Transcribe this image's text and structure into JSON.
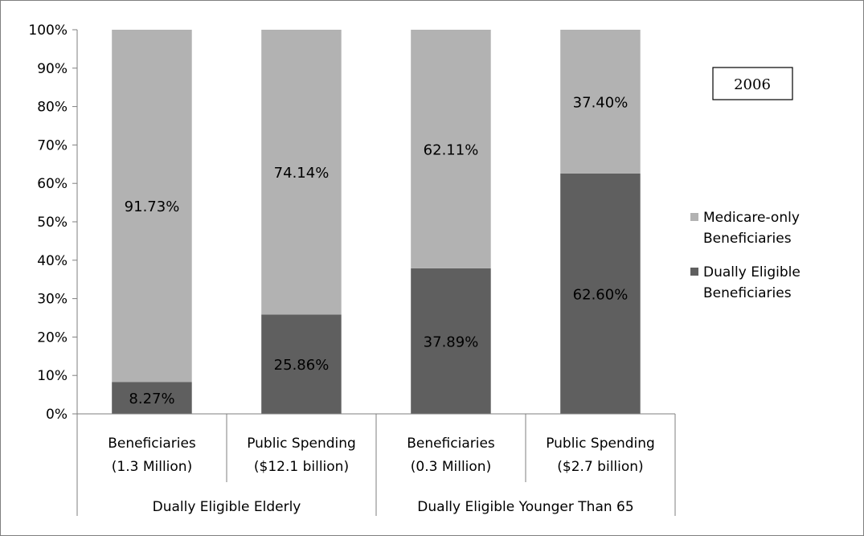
{
  "chart_data": {
    "type": "bar",
    "stacked": true,
    "categories": [
      [
        "Beneficiaries",
        "(1.3 Million)"
      ],
      [
        "Public Spending",
        "($12.1 billion)"
      ],
      [
        "Beneficiaries",
        "(0.3 Million)"
      ],
      [
        "Public Spending",
        "($2.7 billion)"
      ]
    ],
    "groups": [
      "Dually Eligible Elderly",
      "Dually Eligible Younger Than 65"
    ],
    "series": [
      {
        "name": "Dually Eligible Beneficiaries",
        "values": [
          8.27,
          25.86,
          37.89,
          62.6
        ],
        "labels": [
          "8.27%",
          "25.86%",
          "37.89%",
          "62.60%"
        ]
      },
      {
        "name": "Medicare-only Beneficiaries",
        "values": [
          91.73,
          74.14,
          62.11,
          37.4
        ],
        "labels": [
          "91.73%",
          "74.14%",
          "62.11%",
          "37.40%"
        ]
      }
    ],
    "legend": [
      "Medicare-only Beneficiaries",
      "Dually Eligible Beneficiaries"
    ],
    "yticks": [
      "0%",
      "10%",
      "20%",
      "30%",
      "40%",
      "50%",
      "60%",
      "70%",
      "80%",
      "90%",
      "100%"
    ],
    "ylim": [
      0,
      100
    ],
    "annotation": "2006",
    "legend_position": "right",
    "grid": false
  },
  "colors": {
    "dually": "#5f5f5f",
    "medicare": "#b2b2b2",
    "axis": "#7f7f7f"
  }
}
